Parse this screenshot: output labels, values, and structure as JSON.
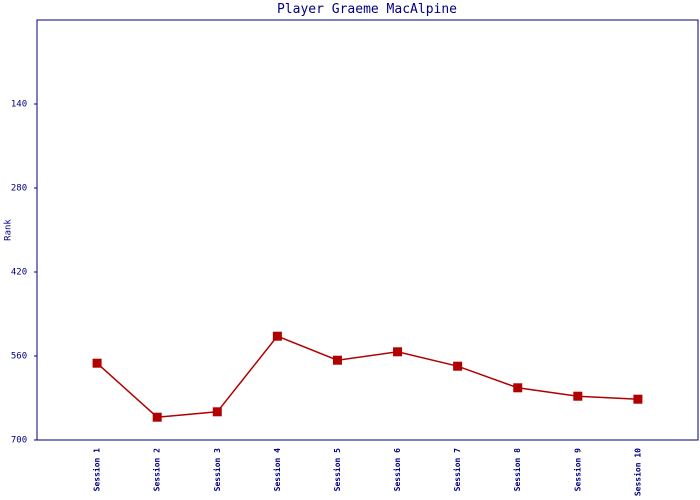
{
  "chart_data": {
    "type": "line",
    "title": "Player Graeme MacAlpine",
    "y_label": "Rank",
    "categories": [
      "Session 1",
      "Session 2",
      "Session 3",
      "Session 4",
      "Session 5",
      "Session 6",
      "Session 7",
      "Session 8",
      "Session 9",
      "Session 10"
    ],
    "series": [
      {
        "name": "Rank",
        "color": "#b00000",
        "values": [
          572,
          662,
          653,
          527,
          567,
          553,
          577,
          613,
          627,
          632
        ]
      }
    ],
    "ylim": [
      0,
      700
    ],
    "y_inverted": true,
    "yticks": [
      140,
      280,
      420,
      560,
      700
    ]
  }
}
